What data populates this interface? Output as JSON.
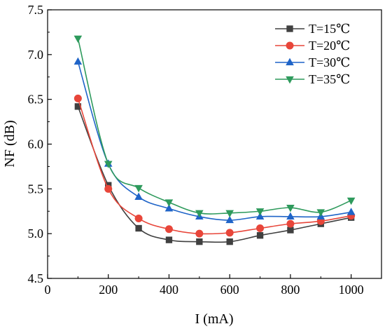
{
  "chart_data": {
    "type": "line",
    "title": "",
    "xlabel": "I (mA)",
    "ylabel": "NF (dB)",
    "xlim": [
      0,
      1100
    ],
    "ylim": [
      4.5,
      7.5
    ],
    "xticks": [
      0,
      200,
      400,
      600,
      800,
      1000
    ],
    "yticks": [
      4.5,
      5.0,
      5.5,
      6.0,
      6.5,
      7.0,
      7.5
    ],
    "xtick_labels": [
      "0",
      "200",
      "400",
      "600",
      "800",
      "1000"
    ],
    "ytick_labels": [
      "4.5",
      "5.0",
      "5.5",
      "6.0",
      "6.5",
      "7.0",
      "7.5"
    ],
    "grid": false,
    "legend_position": "top-right",
    "x": [
      100,
      200,
      300,
      400,
      500,
      600,
      700,
      800,
      900,
      1000
    ],
    "series": [
      {
        "name": "T=15℃",
        "color": "#404040",
        "marker": "square",
        "values": [
          6.42,
          5.54,
          5.06,
          4.93,
          4.91,
          4.91,
          4.98,
          5.04,
          5.11,
          5.18
        ]
      },
      {
        "name": "T=20℃",
        "color": "#e8463a",
        "marker": "circle",
        "values": [
          6.51,
          5.5,
          5.17,
          5.05,
          5.0,
          5.01,
          5.06,
          5.11,
          5.14,
          5.2
        ]
      },
      {
        "name": "T=30℃",
        "color": "#1f64c8",
        "marker": "triangle-up",
        "values": [
          6.92,
          5.78,
          5.41,
          5.28,
          5.19,
          5.15,
          5.19,
          5.19,
          5.19,
          5.24
        ]
      },
      {
        "name": "T=35℃",
        "color": "#2e9a5c",
        "marker": "triangle-down",
        "values": [
          7.18,
          5.78,
          5.51,
          5.35,
          5.23,
          5.23,
          5.25,
          5.29,
          5.24,
          5.37
        ]
      }
    ]
  }
}
